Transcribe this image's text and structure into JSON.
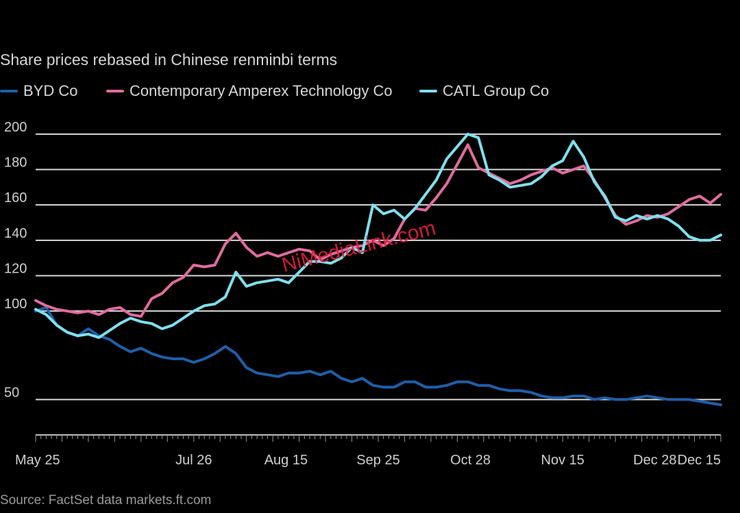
{
  "chart_data": {
    "type": "line",
    "title": "",
    "subtitle": "Share prices rebased in Chinese renminbi terms",
    "xlabel": "",
    "ylabel": "",
    "ylim": [
      30,
      210
    ],
    "yticks": [
      50,
      100,
      120,
      140,
      160,
      180,
      200
    ],
    "ytick_labels": [
      "50",
      "100",
      "120",
      "140",
      "160",
      "180",
      "200"
    ],
    "xtick_labels": [
      "May 25",
      "Jul 26",
      "Aug 15",
      "Sep 25",
      "Oct 28",
      "Nov 15",
      "Dec 28",
      "Dec 15"
    ],
    "xtick_positions": [
      0,
      60,
      95,
      130,
      165,
      200,
      235,
      260
    ],
    "grid": true,
    "legend_position": "top-left",
    "series": [
      {
        "name": "BYD Co",
        "color": "#1f5fa8",
        "x": [
          0,
          4,
          8,
          12,
          16,
          20,
          24,
          28,
          32,
          36,
          40,
          44,
          48,
          52,
          56,
          60,
          64,
          68,
          72,
          76,
          80,
          84,
          88,
          92,
          96,
          100,
          104,
          108,
          112,
          116,
          120,
          124,
          128,
          132,
          136,
          140,
          144,
          148,
          152,
          156,
          160,
          164,
          168,
          172,
          176,
          180,
          184,
          188,
          192,
          196,
          200,
          204,
          208,
          212,
          216,
          220,
          224,
          228,
          232,
          236,
          240,
          244,
          248,
          252,
          256,
          260
        ],
        "values": [
          100,
          102,
          92,
          88,
          86,
          90,
          86,
          84,
          80,
          77,
          79,
          76,
          74,
          73,
          73,
          71,
          73,
          76,
          80,
          76,
          68,
          65,
          64,
          63,
          65,
          65,
          66,
          64,
          66,
          62,
          60,
          62,
          58,
          57,
          57,
          60,
          60,
          57,
          57,
          58,
          60,
          60,
          58,
          58,
          56,
          55,
          55,
          54,
          52,
          51,
          51,
          52,
          52,
          50,
          51,
          50,
          50,
          51,
          52,
          51,
          50,
          50,
          50,
          49,
          48,
          47
        ]
      },
      {
        "name": "Contemporary Amperex Technology Co",
        "color": "#e06c9f",
        "x": [
          0,
          4,
          8,
          12,
          16,
          20,
          24,
          28,
          32,
          36,
          40,
          44,
          48,
          52,
          56,
          60,
          64,
          68,
          72,
          76,
          80,
          84,
          88,
          92,
          96,
          100,
          104,
          108,
          112,
          116,
          120,
          124,
          128,
          132,
          136,
          140,
          144,
          148,
          152,
          156,
          160,
          164,
          168,
          172,
          176,
          180,
          184,
          188,
          192,
          196,
          200,
          204,
          208,
          212,
          216,
          220,
          224,
          228,
          232,
          236,
          240,
          244,
          248,
          252,
          256,
          260
        ],
        "values": [
          106,
          103,
          101,
          100,
          99,
          100,
          98,
          101,
          102,
          98,
          97,
          107,
          110,
          116,
          119,
          126,
          125,
          126,
          138,
          144,
          136,
          131,
          133,
          131,
          133,
          135,
          134,
          129,
          132,
          134,
          136,
          137,
          140,
          137,
          141,
          152,
          158,
          157,
          164,
          172,
          183,
          194,
          181,
          178,
          175,
          172,
          174,
          177,
          179,
          181,
          178,
          180,
          182,
          174,
          164,
          154,
          149,
          151,
          154,
          153,
          155,
          159,
          163,
          165,
          161,
          166
        ]
      },
      {
        "name": "CATL Group Co",
        "color": "#7fe0ec",
        "x": [
          0,
          4,
          8,
          12,
          16,
          20,
          24,
          28,
          32,
          36,
          40,
          44,
          48,
          52,
          56,
          60,
          64,
          68,
          72,
          76,
          80,
          84,
          88,
          92,
          96,
          100,
          104,
          108,
          112,
          116,
          120,
          124,
          128,
          132,
          136,
          140,
          144,
          148,
          152,
          156,
          160,
          164,
          168,
          172,
          176,
          180,
          184,
          188,
          192,
          196,
          200,
          204,
          208,
          212,
          216,
          220,
          224,
          228,
          232,
          236,
          240,
          244,
          248,
          252,
          256,
          260
        ],
        "values": [
          101,
          98,
          92,
          88,
          86,
          87,
          85,
          89,
          93,
          96,
          94,
          93,
          90,
          92,
          96,
          100,
          103,
          104,
          108,
          122,
          114,
          116,
          117,
          118,
          116,
          122,
          128,
          128,
          127,
          130,
          136,
          133,
          160,
          155,
          157,
          152,
          158,
          166,
          174,
          186,
          193,
          200,
          198,
          177,
          174,
          170,
          171,
          172,
          176,
          182,
          185,
          196,
          187,
          173,
          165,
          153,
          151,
          154,
          152,
          154,
          152,
          148,
          142,
          140,
          140,
          143
        ]
      }
    ]
  },
  "watermark": "NiMediaLink.com",
  "source": "Source: FactSet data markets.ft.com"
}
